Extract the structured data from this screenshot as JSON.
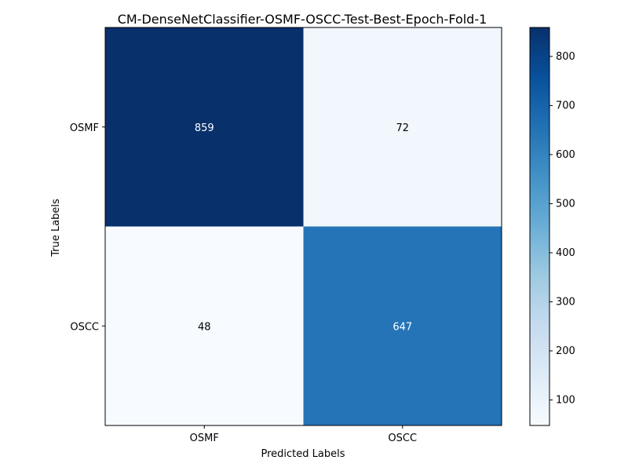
{
  "chart_data": {
    "type": "heatmap",
    "title": "CM-DenseNetClassifier-OSMF-OSCC-Test-Best-Epoch-Fold-1",
    "xlabel": "Predicted Labels",
    "ylabel": "True Labels",
    "x_categories": [
      "OSMF",
      "OSCC"
    ],
    "y_categories": [
      "OSMF",
      "OSCC"
    ],
    "values": [
      [
        859,
        72
      ],
      [
        48,
        647
      ]
    ],
    "colormap": "Blues",
    "colormap_stops": [
      "#f7fbff",
      "#deebf7",
      "#c6dbef",
      "#9ecae1",
      "#6baed6",
      "#4292c6",
      "#2171b5",
      "#08519c",
      "#08306b"
    ],
    "colorbar": {
      "range": [
        48,
        859
      ],
      "ticks": [
        100,
        200,
        300,
        400,
        500,
        600,
        700,
        800
      ]
    }
  }
}
